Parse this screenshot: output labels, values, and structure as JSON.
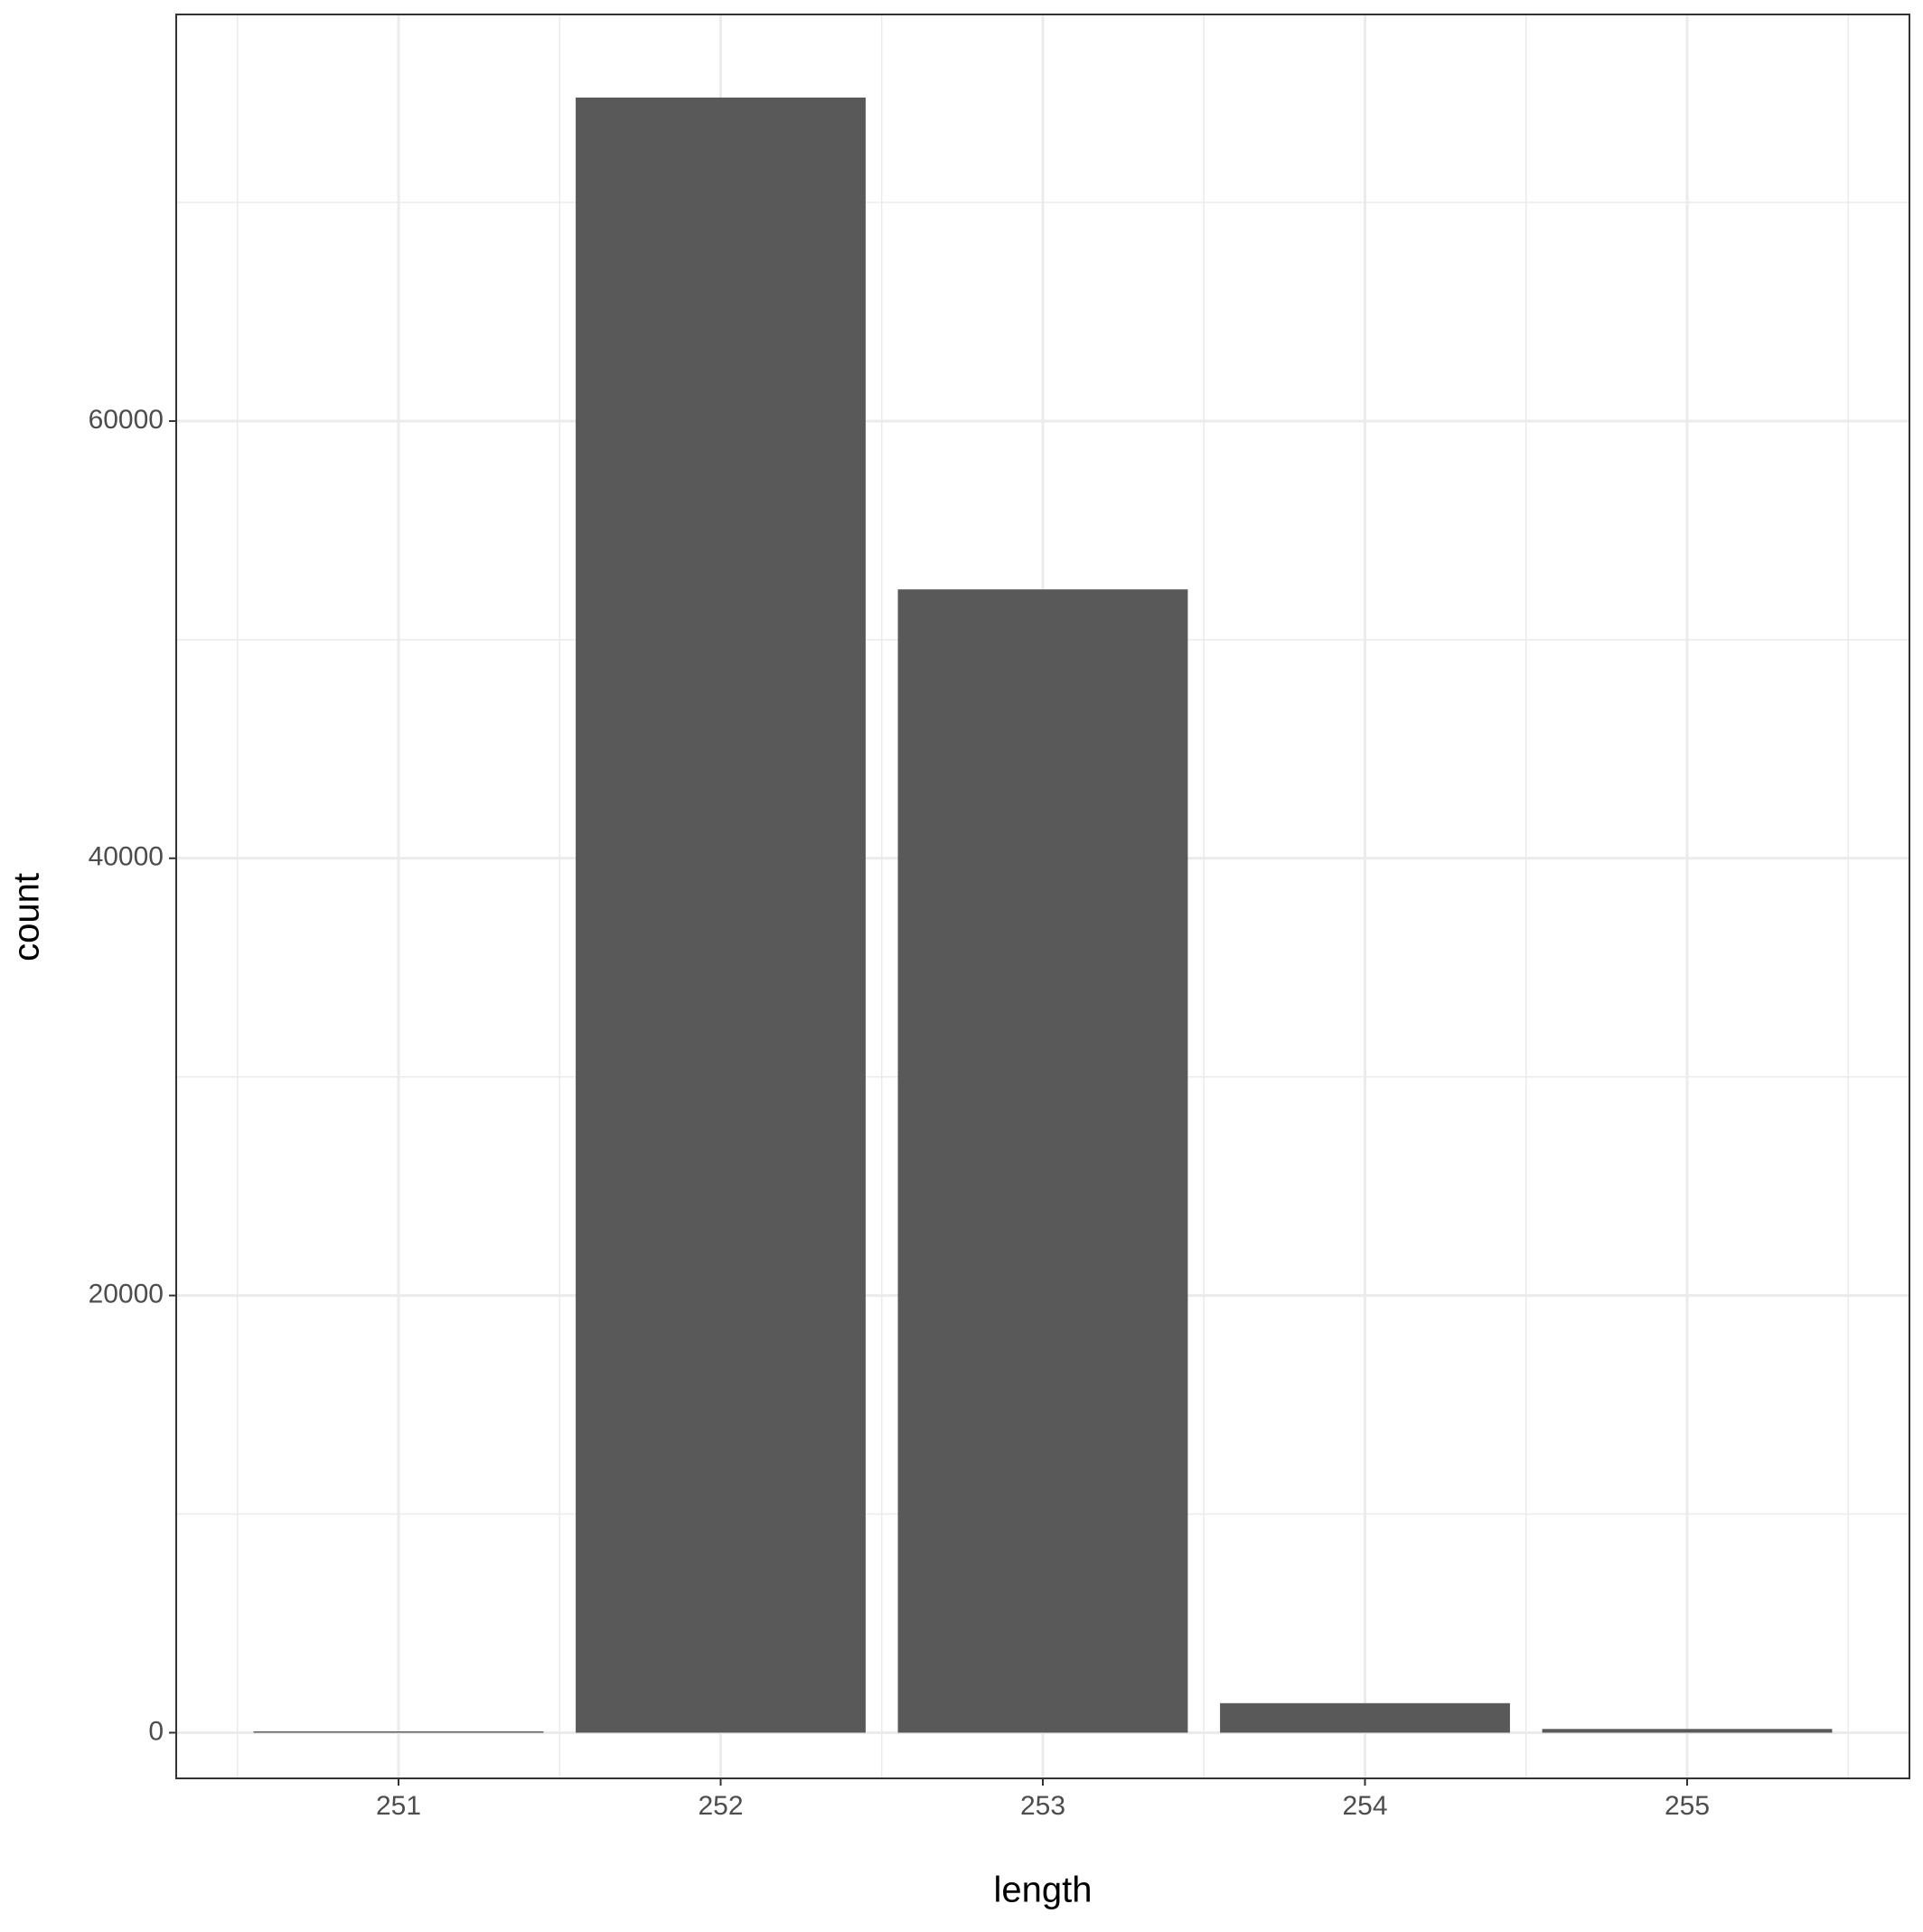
{
  "chart_data": {
    "type": "bar",
    "x_label": "length",
    "y_label": "count",
    "x": [
      251,
      252,
      253,
      254,
      255
    ],
    "values": [
      60,
      74800,
      52300,
      1350,
      170
    ],
    "color": "#595959",
    "xlim": [
      250.31,
      255.69
    ],
    "xticks": [
      251,
      252,
      253,
      254,
      255
    ],
    "ylim": [
      -2090,
      78600
    ],
    "yticks": [
      0,
      20000,
      40000,
      60000
    ],
    "grid": true
  }
}
